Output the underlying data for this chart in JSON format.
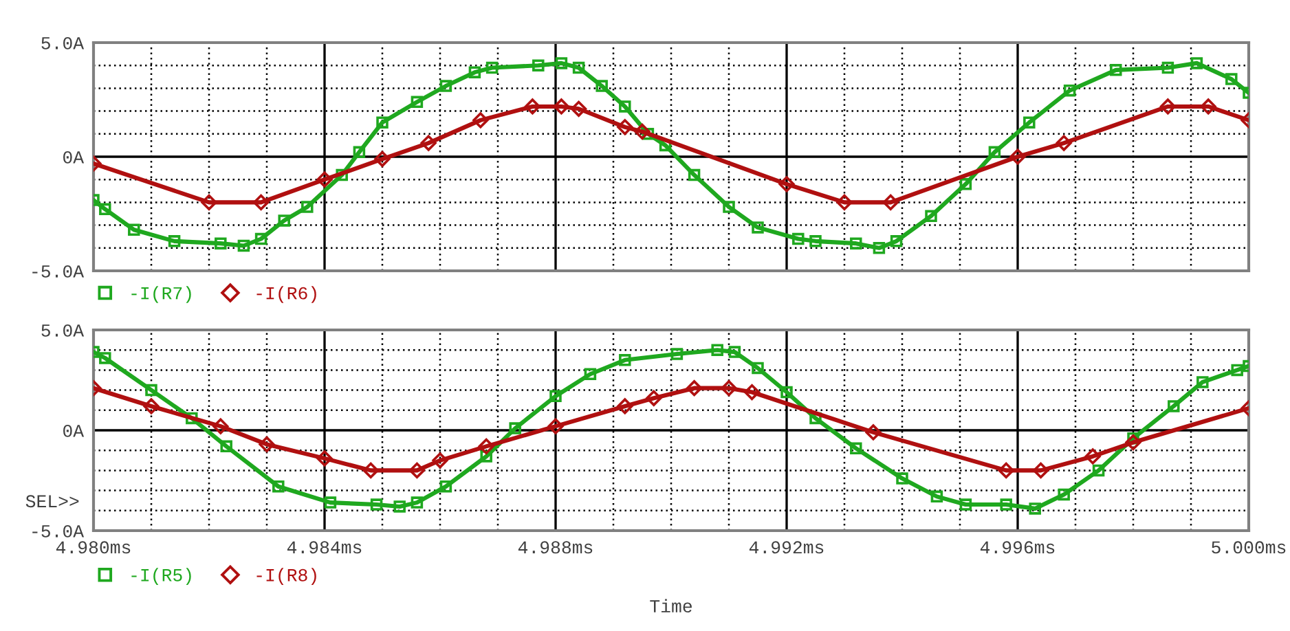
{
  "chart_data": [
    {
      "type": "line",
      "xlim": [
        4.98,
        5.0
      ],
      "ylim": [
        -5,
        5
      ],
      "yticks": [
        {
          "value": -5,
          "label": "-5.0A"
        },
        {
          "value": -4,
          "label": null
        },
        {
          "value": -3,
          "label": null
        },
        {
          "value": -2,
          "label": null
        },
        {
          "value": -1,
          "label": null
        },
        {
          "value": 0,
          "label": "0A"
        },
        {
          "value": 1,
          "label": null
        },
        {
          "value": 2,
          "label": null
        },
        {
          "value": 3,
          "label": null
        },
        {
          "value": 4,
          "label": null
        },
        {
          "value": 5,
          "label": "5.0A"
        }
      ],
      "tick_labels": "y",
      "grid": true,
      "legend": "bottom left",
      "line_style": "solid",
      "series": [
        {
          "name": "-I(R7)",
          "color": "#1fa81f",
          "marker": "square",
          "x": [
            4.98,
            4.9802,
            4.9807,
            4.9814,
            4.9822,
            4.9826,
            4.9829,
            4.9833,
            4.9837,
            4.9843,
            4.9846,
            4.985,
            4.9856,
            4.9861,
            4.9866,
            4.9869,
            4.9877,
            4.9881,
            4.9884,
            4.9888,
            4.9892,
            4.9896,
            4.9899,
            4.9904,
            4.991,
            4.9915,
            4.9922,
            4.9925,
            4.9932,
            4.9936,
            4.9939,
            4.9945,
            4.9951,
            4.9956,
            4.9962,
            4.9969,
            4.9977,
            4.9986,
            4.9991,
            4.9997,
            5.0
          ],
          "values": [
            -1.9,
            -2.3,
            -3.2,
            -3.7,
            -3.8,
            -3.9,
            -3.6,
            -2.8,
            -2.2,
            -0.8,
            0.2,
            1.5,
            2.4,
            3.1,
            3.7,
            3.9,
            4.0,
            4.1,
            3.9,
            3.1,
            2.2,
            1.0,
            0.5,
            -0.8,
            -2.2,
            -3.1,
            -3.6,
            -3.7,
            -3.8,
            -4.0,
            -3.7,
            -2.6,
            -1.2,
            0.2,
            1.5,
            2.9,
            3.8,
            3.9,
            4.1,
            3.4,
            2.8
          ]
        },
        {
          "name": "-I(R6)",
          "color": "#b01010",
          "marker": "diamond",
          "x": [
            4.98,
            4.982,
            4.9829,
            4.984,
            4.985,
            4.9858,
            4.9867,
            4.9876,
            4.9881,
            4.9884,
            4.9892,
            4.9895,
            4.992,
            4.993,
            4.9938,
            4.996,
            4.9968,
            4.9986,
            4.9993,
            5.0
          ],
          "values": [
            -0.3,
            -2.0,
            -2.0,
            -1.0,
            -0.1,
            0.6,
            1.6,
            2.2,
            2.2,
            2.1,
            1.3,
            1.1,
            -1.2,
            -2.0,
            -2.0,
            0.0,
            0.6,
            2.2,
            2.2,
            1.6
          ]
        }
      ]
    },
    {
      "type": "line",
      "xlim": [
        4.98,
        5.0
      ],
      "ylim": [
        -5,
        5
      ],
      "xlabel": "Time",
      "annotations": [
        "SEL>>"
      ],
      "xticks": [
        {
          "value": 4.98,
          "label": "4.980ms"
        },
        {
          "value": 4.981,
          "label": null
        },
        {
          "value": 4.982,
          "label": null
        },
        {
          "value": 4.983,
          "label": null
        },
        {
          "value": 4.984,
          "label": "4.984ms"
        },
        {
          "value": 4.985,
          "label": null
        },
        {
          "value": 4.986,
          "label": null
        },
        {
          "value": 4.987,
          "label": null
        },
        {
          "value": 4.988,
          "label": "4.988ms"
        },
        {
          "value": 4.989,
          "label": null
        },
        {
          "value": 4.99,
          "label": null
        },
        {
          "value": 4.991,
          "label": null
        },
        {
          "value": 4.992,
          "label": "4.992ms"
        },
        {
          "value": 4.993,
          "label": null
        },
        {
          "value": 4.994,
          "label": null
        },
        {
          "value": 4.995,
          "label": null
        },
        {
          "value": 4.996,
          "label": "4.996ms"
        },
        {
          "value": 4.997,
          "label": null
        },
        {
          "value": 4.998,
          "label": null
        },
        {
          "value": 4.999,
          "label": null
        },
        {
          "value": 5.0,
          "label": "5.000ms"
        }
      ],
      "yticks": [
        {
          "value": -5,
          "label": "-5.0A"
        },
        {
          "value": -4,
          "label": null
        },
        {
          "value": -3,
          "label": null
        },
        {
          "value": -2,
          "label": null
        },
        {
          "value": -1,
          "label": null
        },
        {
          "value": 0,
          "label": "0A"
        },
        {
          "value": 1,
          "label": null
        },
        {
          "value": 2,
          "label": null
        },
        {
          "value": 3,
          "label": null
        },
        {
          "value": 4,
          "label": null
        },
        {
          "value": 5,
          "label": "5.0A"
        }
      ],
      "grid": true,
      "legend": "bottom left",
      "line_style": "solid",
      "series": [
        {
          "name": "-I(R5)",
          "color": "#1fa81f",
          "marker": "square",
          "x": [
            4.98,
            4.9802,
            4.981,
            4.9817,
            4.9823,
            4.9832,
            4.9841,
            4.9849,
            4.9853,
            4.9856,
            4.9861,
            4.9868,
            4.9873,
            4.988,
            4.9886,
            4.9892,
            4.9901,
            4.9908,
            4.9911,
            4.9915,
            4.992,
            4.9925,
            4.9932,
            4.994,
            4.9946,
            4.9951,
            4.9958,
            4.9963,
            4.9968,
            4.9974,
            4.998,
            4.9987,
            4.9992,
            4.9998,
            5.0
          ],
          "values": [
            3.9,
            3.6,
            2.0,
            0.6,
            -0.8,
            -2.8,
            -3.6,
            -3.7,
            -3.8,
            -3.6,
            -2.8,
            -1.3,
            0.1,
            1.7,
            2.8,
            3.5,
            3.8,
            4.0,
            3.9,
            3.1,
            1.9,
            0.6,
            -0.9,
            -2.4,
            -3.3,
            -3.7,
            -3.7,
            -3.9,
            -3.2,
            -2.0,
            -0.4,
            1.2,
            2.4,
            3.0,
            3.2
          ]
        },
        {
          "name": "-I(R8)",
          "color": "#b01010",
          "marker": "diamond",
          "x": [
            4.98,
            4.981,
            4.9822,
            4.983,
            4.984,
            4.9848,
            4.9856,
            4.986,
            4.9868,
            4.988,
            4.9892,
            4.9897,
            4.9904,
            4.991,
            4.9914,
            4.9935,
            4.9958,
            4.9964,
            4.9973,
            4.998,
            5.0
          ],
          "values": [
            2.1,
            1.2,
            0.2,
            -0.7,
            -1.4,
            -2.0,
            -2.0,
            -1.5,
            -0.8,
            0.2,
            1.2,
            1.6,
            2.1,
            2.1,
            1.9,
            -0.1,
            -2.0,
            -2.0,
            -1.3,
            -0.6,
            1.1
          ]
        }
      ]
    }
  ]
}
